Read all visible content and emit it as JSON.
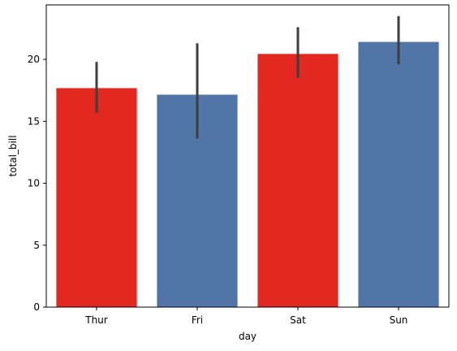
{
  "chart_data": {
    "type": "bar",
    "xlabel": "day",
    "ylabel": "total_bill",
    "categories": [
      "Thur",
      "Fri",
      "Sat",
      "Sun"
    ],
    "values": [
      17.68,
      17.15,
      20.44,
      21.41
    ],
    "error_low": [
      15.7,
      13.6,
      18.5,
      19.6
    ],
    "error_high": [
      19.8,
      21.3,
      22.6,
      23.5
    ],
    "ylim": [
      0,
      24.4
    ],
    "yticks": [
      0,
      5,
      10,
      15,
      20
    ],
    "grid": false,
    "colors": [
      "#e32822",
      "#5075a6",
      "#e32822",
      "#5075a6"
    ],
    "errorbar_color": "#3f3f3f"
  }
}
